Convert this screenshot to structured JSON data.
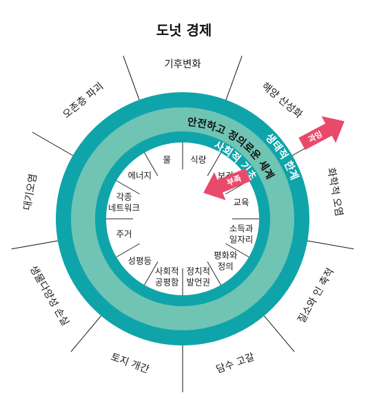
{
  "title": "도넛 경제",
  "colors": {
    "ring": "#0fa4aa",
    "band": "#6fc4b4",
    "center": "#ffffff",
    "arrow": "#e94a6c",
    "ring_text_light": "#ffffff",
    "ring_text_dark": "#111111"
  },
  "ring_labels": {
    "ecological_ceiling": "생태적 한계",
    "social_foundation": "사회적 기초",
    "safe_just_space": "안전하고 정의로운 세계"
  },
  "arrows": {
    "overshoot": "과잉",
    "shortfall": "부족"
  },
  "ceiling_labels": [
    "기후변화",
    "해양 산성화",
    "화학적 오염",
    "질소와 인 축적",
    "담수 고갈",
    "토지 개간",
    "생물다양성 손실",
    "대기오염",
    "오존층 파괴"
  ],
  "foundation_labels": [
    [
      "식량"
    ],
    [
      "보건"
    ],
    [
      "교육"
    ],
    [
      "소득과",
      "일자리"
    ],
    [
      "평화와",
      "정의"
    ],
    [
      "정치적",
      "발언권"
    ],
    [
      "사회적",
      "공평함"
    ],
    [
      "성평등"
    ],
    [
      "주거"
    ],
    [
      "각종",
      "네트워크"
    ],
    [
      "에너지"
    ],
    [
      "물"
    ]
  ]
}
